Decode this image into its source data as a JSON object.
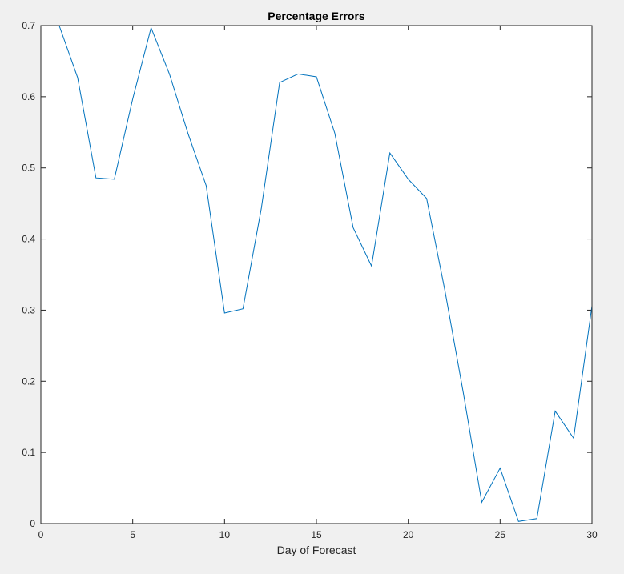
{
  "chart_data": {
    "type": "line",
    "title": "Percentage Errors",
    "xlabel": "Day of Forecast",
    "ylabel": "",
    "xlim": [
      0,
      30
    ],
    "ylim": [
      0,
      0.7
    ],
    "xticks": [
      0,
      5,
      10,
      15,
      20,
      25,
      30
    ],
    "yticks": [
      0,
      0.1,
      0.2,
      0.3,
      0.4,
      0.5,
      0.6,
      0.7
    ],
    "grid": false,
    "series": [
      {
        "color": "#0072bd",
        "x": [
          1,
          2,
          3,
          4,
          5,
          6,
          7,
          8,
          9,
          10,
          11,
          12,
          13,
          14,
          15,
          16,
          17,
          18,
          19,
          20,
          21,
          22,
          23,
          24,
          25,
          26,
          27,
          28,
          29,
          30
        ],
        "values": [
          0.7,
          0.627,
          0.486,
          0.484,
          0.597,
          0.697,
          0.632,
          0.549,
          0.475,
          0.296,
          0.302,
          0.443,
          0.62,
          0.632,
          0.628,
          0.549,
          0.416,
          0.362,
          0.521,
          0.484,
          0.457,
          0.327,
          0.183,
          0.03,
          0.078,
          0.003,
          0.007,
          0.158,
          0.12,
          0.306
        ]
      }
    ]
  }
}
